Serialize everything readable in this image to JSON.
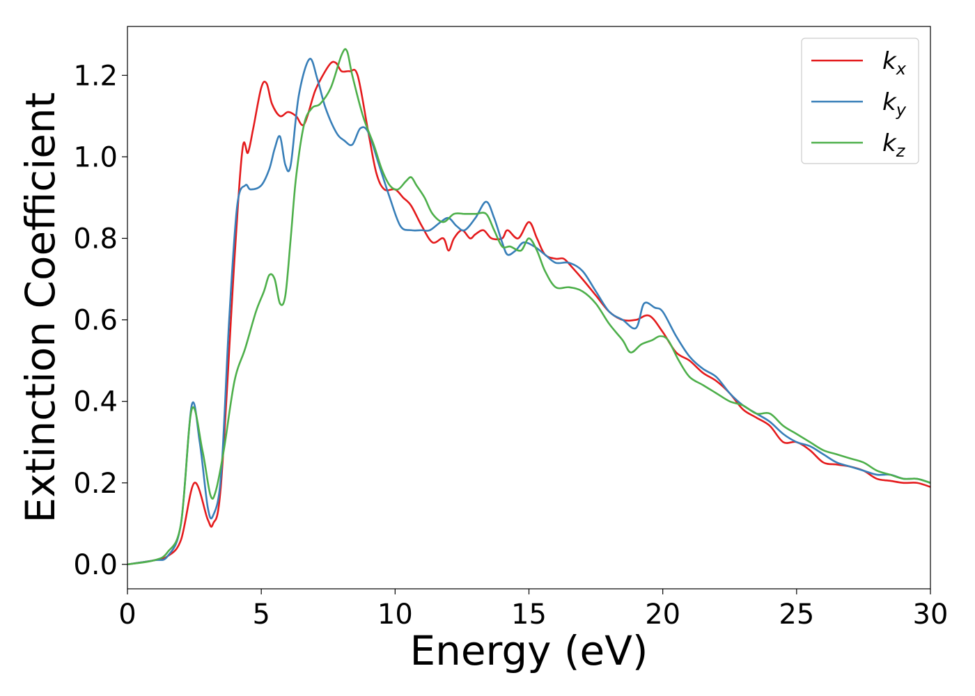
{
  "chart_data": {
    "type": "line",
    "title": "",
    "xlabel": "Energy (eV)",
    "ylabel": "Extinction Coefficient",
    "xlim": [
      0,
      30
    ],
    "ylim": [
      -0.06,
      1.32
    ],
    "xticks": [
      0,
      5,
      10,
      15,
      20,
      25,
      30
    ],
    "yticks": [
      0.0,
      0.2,
      0.4,
      0.6,
      0.8,
      1.0,
      1.2
    ],
    "ytick_labels": [
      "0.0",
      "0.2",
      "0.4",
      "0.6",
      "0.8",
      "1.0",
      "1.2"
    ],
    "grid": false,
    "legend_position": "top-right",
    "series": [
      {
        "name": "kx",
        "base": "k",
        "sub": "x",
        "color": "#e41a1c",
        "x": [
          0,
          1,
          1.5,
          2,
          2.5,
          3,
          3.2,
          3.5,
          4,
          4.3,
          4.5,
          4.7,
          5,
          5.2,
          5.4,
          5.7,
          6,
          6.3,
          6.6,
          7,
          7.3,
          7.6,
          7.8,
          8,
          8.3,
          8.6,
          9,
          9.3,
          9.6,
          10,
          10.3,
          10.6,
          11,
          11.4,
          11.8,
          12,
          12.2,
          12.5,
          12.8,
          13,
          13.3,
          13.6,
          14,
          14.2,
          14.6,
          15,
          15.3,
          15.6,
          16,
          16.3,
          16.6,
          17,
          17.5,
          18,
          18.5,
          19,
          19.5,
          20,
          20.5,
          21,
          21.5,
          22,
          22.5,
          23,
          23.5,
          24,
          24.5,
          25,
          25.5,
          26,
          26.5,
          27,
          27.5,
          28,
          28.5,
          29,
          29.5,
          30
        ],
        "y": [
          0,
          0.01,
          0.02,
          0.06,
          0.2,
          0.11,
          0.1,
          0.2,
          0.75,
          1.02,
          1.01,
          1.07,
          1.17,
          1.18,
          1.13,
          1.1,
          1.11,
          1.1,
          1.08,
          1.16,
          1.2,
          1.23,
          1.23,
          1.21,
          1.21,
          1.2,
          1.06,
          0.96,
          0.92,
          0.92,
          0.9,
          0.88,
          0.83,
          0.79,
          0.8,
          0.77,
          0.8,
          0.82,
          0.8,
          0.81,
          0.82,
          0.8,
          0.8,
          0.82,
          0.8,
          0.84,
          0.8,
          0.76,
          0.75,
          0.75,
          0.73,
          0.7,
          0.66,
          0.62,
          0.6,
          0.6,
          0.61,
          0.57,
          0.52,
          0.5,
          0.47,
          0.45,
          0.42,
          0.38,
          0.36,
          0.34,
          0.3,
          0.3,
          0.28,
          0.25,
          0.245,
          0.24,
          0.23,
          0.21,
          0.205,
          0.2,
          0.2,
          0.19
        ]
      },
      {
        "name": "ky",
        "base": "k",
        "sub": "y",
        "color": "#377eb8",
        "x": [
          0,
          1,
          1.5,
          2,
          2.4,
          2.7,
          3,
          3.2,
          3.5,
          3.8,
          4.1,
          4.4,
          4.6,
          5,
          5.3,
          5.5,
          5.7,
          5.9,
          6.1,
          6.4,
          6.8,
          7.1,
          7.4,
          7.8,
          8.1,
          8.4,
          8.7,
          9,
          9.4,
          9.8,
          10.2,
          10.6,
          11,
          11.3,
          11.7,
          12,
          12.3,
          12.6,
          13,
          13.4,
          13.7,
          14,
          14.2,
          14.5,
          14.8,
          15.2,
          15.6,
          16,
          16.5,
          17,
          17.5,
          18,
          18.5,
          19,
          19.3,
          19.7,
          20,
          20.5,
          21,
          21.5,
          22,
          22.5,
          23,
          23.5,
          24,
          24.5,
          25,
          25.5,
          26,
          26.5,
          27,
          27.5,
          28,
          28.5,
          29,
          29.5,
          30
        ],
        "y": [
          0,
          0.01,
          0.02,
          0.1,
          0.39,
          0.3,
          0.14,
          0.12,
          0.22,
          0.6,
          0.88,
          0.93,
          0.92,
          0.93,
          0.97,
          1.02,
          1.05,
          0.98,
          0.98,
          1.15,
          1.24,
          1.19,
          1.12,
          1.06,
          1.04,
          1.03,
          1.07,
          1.06,
          0.98,
          0.9,
          0.83,
          0.82,
          0.82,
          0.82,
          0.84,
          0.85,
          0.83,
          0.82,
          0.85,
          0.89,
          0.85,
          0.79,
          0.76,
          0.77,
          0.79,
          0.78,
          0.76,
          0.74,
          0.74,
          0.72,
          0.67,
          0.62,
          0.6,
          0.58,
          0.64,
          0.63,
          0.62,
          0.56,
          0.51,
          0.48,
          0.46,
          0.42,
          0.39,
          0.37,
          0.35,
          0.32,
          0.3,
          0.29,
          0.27,
          0.25,
          0.24,
          0.23,
          0.22,
          0.22,
          0.21,
          0.21,
          0.2
        ]
      },
      {
        "name": "kz",
        "base": "k",
        "sub": "z",
        "color": "#4daf4a",
        "x": [
          0,
          1,
          1.5,
          2,
          2.4,
          2.8,
          3.1,
          3.3,
          3.6,
          4,
          4.4,
          4.8,
          5.1,
          5.3,
          5.5,
          5.7,
          5.9,
          6.1,
          6.3,
          6.6,
          6.9,
          7.2,
          7.6,
          8,
          8.2,
          8.4,
          8.8,
          9.2,
          9.5,
          9.8,
          10.1,
          10.4,
          10.6,
          10.8,
          11.1,
          11.4,
          11.8,
          12.2,
          12.6,
          13,
          13.4,
          13.7,
          14,
          14.3,
          14.7,
          15,
          15.3,
          15.6,
          16,
          16.5,
          17,
          17.5,
          18,
          18.5,
          18.8,
          19.2,
          19.6,
          19.9,
          20.2,
          20.6,
          21,
          21.5,
          22,
          22.5,
          23,
          23.5,
          24,
          24.5,
          25,
          25.5,
          26,
          26.5,
          27,
          27.5,
          28,
          28.5,
          29,
          29.5,
          30
        ],
        "y": [
          0,
          0.01,
          0.03,
          0.1,
          0.38,
          0.28,
          0.17,
          0.18,
          0.28,
          0.45,
          0.53,
          0.62,
          0.67,
          0.71,
          0.7,
          0.64,
          0.66,
          0.8,
          0.95,
          1.08,
          1.12,
          1.13,
          1.17,
          1.25,
          1.26,
          1.2,
          1.1,
          1.03,
          0.97,
          0.93,
          0.92,
          0.94,
          0.95,
          0.93,
          0.9,
          0.86,
          0.84,
          0.86,
          0.86,
          0.86,
          0.86,
          0.82,
          0.78,
          0.78,
          0.77,
          0.8,
          0.77,
          0.72,
          0.68,
          0.68,
          0.67,
          0.64,
          0.59,
          0.55,
          0.52,
          0.54,
          0.55,
          0.56,
          0.55,
          0.5,
          0.46,
          0.44,
          0.42,
          0.4,
          0.39,
          0.37,
          0.37,
          0.34,
          0.32,
          0.3,
          0.28,
          0.27,
          0.26,
          0.25,
          0.23,
          0.22,
          0.21,
          0.21,
          0.2
        ]
      }
    ]
  }
}
